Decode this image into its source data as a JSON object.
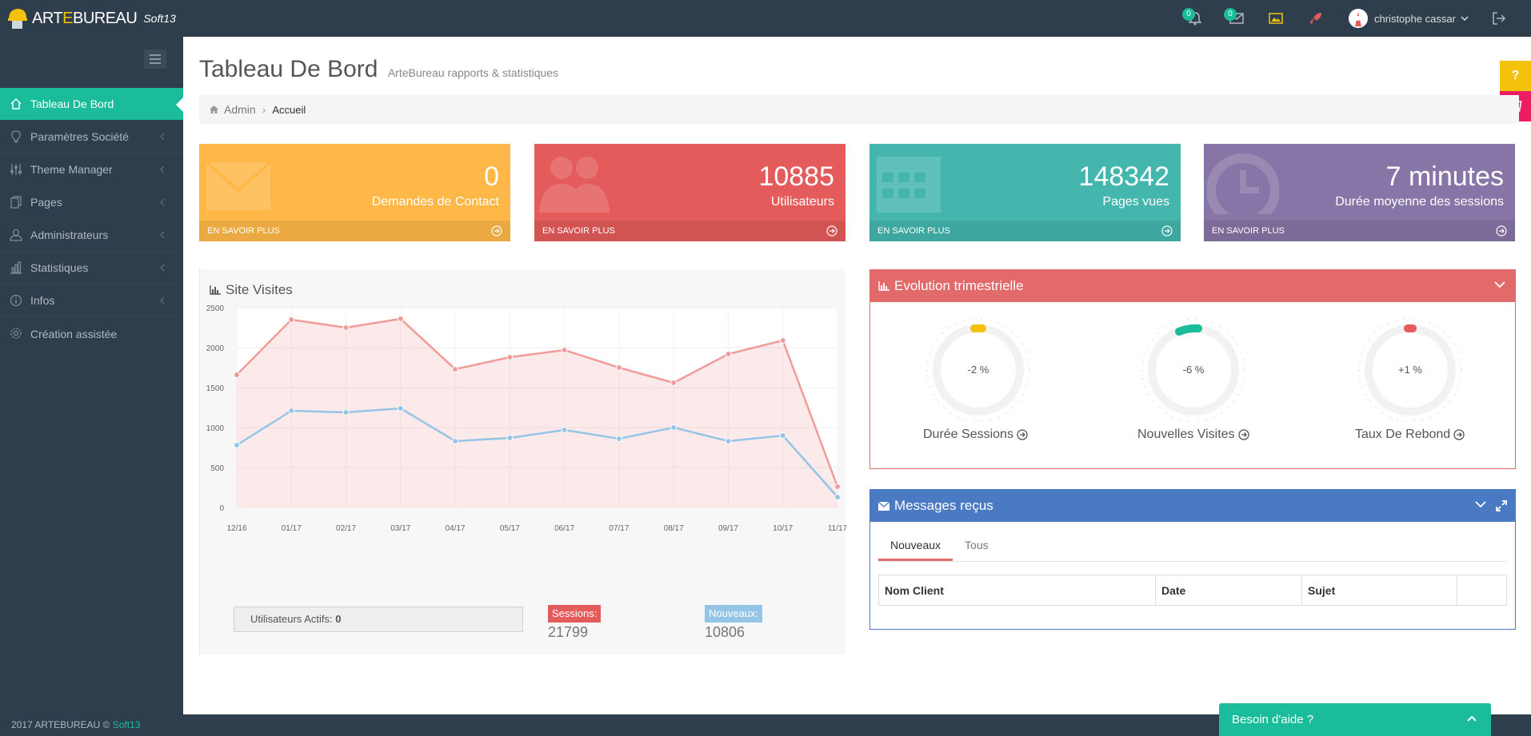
{
  "app": {
    "logo_text_a": "ART",
    "logo_text_b": "E",
    "logo_text_c": "BUREAU",
    "logo_sub": "Soft13",
    "accent": "#1abc9c"
  },
  "topbar": {
    "notifications_count": "0",
    "messages_count": "0",
    "user_name": "christophe cassar",
    "icons": [
      "bell-icon",
      "envelope-icon",
      "image-icon",
      "rocket-icon",
      "logout-icon"
    ]
  },
  "sidebar": {
    "items": [
      {
        "label": "Tableau De Bord",
        "icon": "home-icon",
        "active": true
      },
      {
        "label": "Paramètres Société",
        "icon": "lightbulb-icon"
      },
      {
        "label": "Theme Manager",
        "icon": "sliders-icon"
      },
      {
        "label": "Pages",
        "icon": "pages-icon"
      },
      {
        "label": "Administrateurs",
        "icon": "user-icon"
      },
      {
        "label": "Statistiques",
        "icon": "bar-chart-icon"
      },
      {
        "label": "Infos",
        "icon": "info-icon"
      },
      {
        "label": "Création assistée",
        "icon": "gear-icon"
      }
    ]
  },
  "header": {
    "title": "Tableau De Bord",
    "subtitle": "ArteBureau rapports & statistiques"
  },
  "breadcrumb": {
    "root": "Admin",
    "current": "Accueil"
  },
  "stats": [
    {
      "value": "0",
      "label": "Demandes de Contact",
      "more": "EN SAVOIR PLUS",
      "color": "#ffb848"
    },
    {
      "value": "10885",
      "label": "Utilisateurs",
      "more": "EN SAVOIR PLUS",
      "color": "#e35b5a"
    },
    {
      "value": "148342",
      "label": "Pages vues",
      "more": "EN SAVOIR PLUS",
      "color": "#44b6ae"
    },
    {
      "value": "7 minutes",
      "label": "Durée moyenne des sessions",
      "more": "EN SAVOIR PLUS",
      "color": "#8775a7"
    }
  ],
  "visits": {
    "title": "Site Visites",
    "active_users_label": "Utilisateurs Actifs:",
    "active_users_value": "0",
    "sessions_label": "Sessions:",
    "sessions_value": "21799",
    "new_label": "Nouveaux:",
    "new_value": "10806"
  },
  "chart_data": {
    "type": "area",
    "categories": [
      "12/16",
      "01/17",
      "02/17",
      "03/17",
      "04/17",
      "05/17",
      "06/17",
      "07/17",
      "08/17",
      "09/17",
      "10/17",
      "11/17"
    ],
    "yticks": [
      "0",
      "500",
      "1000",
      "1500",
      "2000",
      "2500"
    ],
    "ylim": [
      0,
      2500
    ],
    "series": [
      {
        "name": "Sessions:",
        "color": "#f29b9b",
        "values": [
          1660,
          2350,
          2250,
          2360,
          1730,
          1880,
          1970,
          1750,
          1560,
          1920,
          2090,
          260
        ]
      },
      {
        "name": "Nouveaux:",
        "color": "#95c5e6",
        "values": [
          780,
          1210,
          1190,
          1240,
          830,
          870,
          970,
          860,
          1000,
          830,
          900,
          130
        ]
      }
    ]
  },
  "evolution": {
    "title": "Evolution trimestrielle",
    "gauges": [
      {
        "value": "-2 %",
        "label": "Durée Sessions",
        "color": "#f4c20d"
      },
      {
        "value": "-6 %",
        "label": "Nouvelles Visites",
        "color": "#1abc9c"
      },
      {
        "value": "+1 %",
        "label": "Taux De Rebond",
        "color": "#e35b5a"
      }
    ]
  },
  "messages": {
    "title": "Messages reçus",
    "tabs": [
      "Nouveaux",
      "Tous"
    ],
    "columns": [
      "Nom Client",
      "Date",
      "Sujet",
      ""
    ]
  },
  "footer": {
    "text": "2017 ARTEBUREAU ©",
    "link": "Soft13"
  },
  "help": {
    "label": "Besoin d'aide ?",
    "float_question": "?"
  }
}
